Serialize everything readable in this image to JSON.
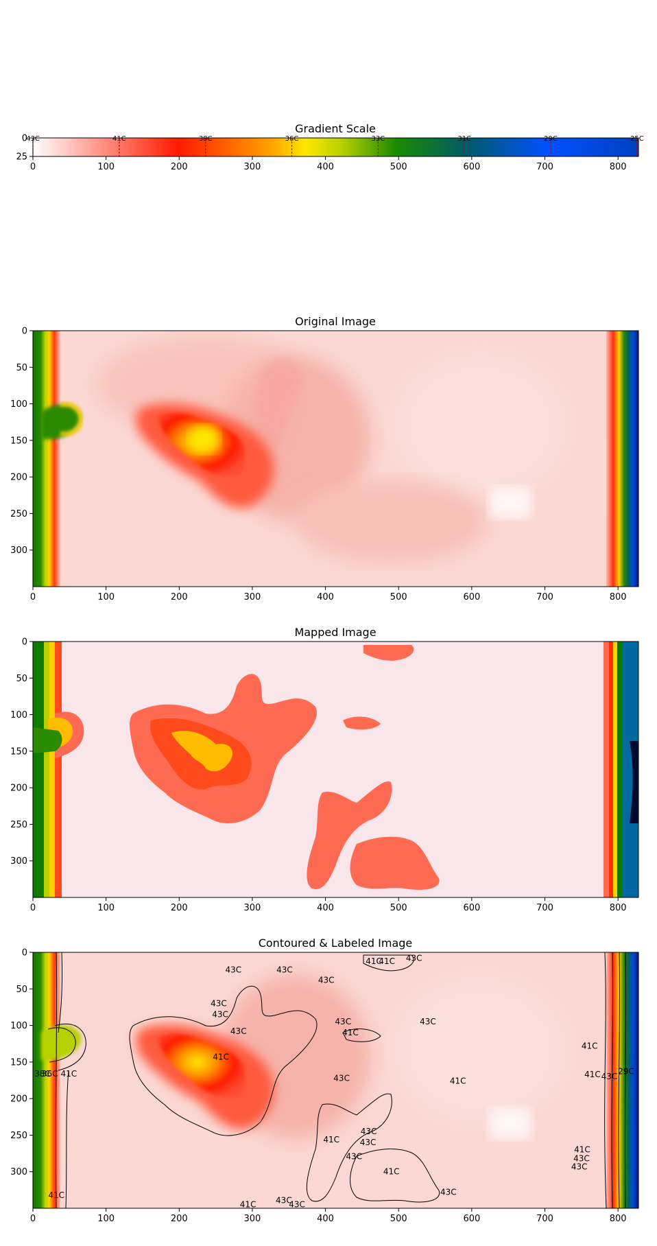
{
  "chart_data": [
    {
      "type": "heatmap",
      "title": "Gradient Scale",
      "xlim": [
        0,
        828
      ],
      "ylim": [
        25,
        0
      ],
      "x_ticks": [
        "0",
        "100",
        "200",
        "300",
        "400",
        "500",
        "600",
        "700",
        "800"
      ],
      "y_ticks": [
        "0",
        "25"
      ],
      "gradient_stops": [
        {
          "pos": 0,
          "color": "#ffffff"
        },
        {
          "pos": 0.24,
          "color": "#ff1a00"
        },
        {
          "pos": 0.39,
          "color": "#ffa000"
        },
        {
          "pos": 0.45,
          "color": "#ffe800"
        },
        {
          "pos": 0.51,
          "color": "#b8d000"
        },
        {
          "pos": 0.6,
          "color": "#1a8a00"
        },
        {
          "pos": 0.72,
          "color": "#005a6a"
        },
        {
          "pos": 0.85,
          "color": "#0050ff"
        },
        {
          "pos": 1,
          "color": "#0040c0"
        }
      ],
      "markers": [
        {
          "x": 0,
          "label": "43C"
        },
        {
          "x": 118,
          "label": "41C"
        },
        {
          "x": 236,
          "label": "38C"
        },
        {
          "x": 354,
          "label": "36C"
        },
        {
          "x": 472,
          "label": "33C"
        },
        {
          "x": 590,
          "label": "31C"
        },
        {
          "x": 708,
          "label": "29C"
        },
        {
          "x": 826,
          "label": "25C"
        }
      ]
    },
    {
      "type": "heatmap",
      "title": "Original Image",
      "xlim": [
        0,
        828
      ],
      "ylim": [
        350,
        0
      ],
      "x_ticks": [
        "0",
        "100",
        "200",
        "300",
        "400",
        "500",
        "600",
        "700",
        "800"
      ],
      "y_ticks": [
        "0",
        "50",
        "100",
        "150",
        "200",
        "250",
        "300"
      ]
    },
    {
      "type": "heatmap",
      "title": "Mapped Image",
      "xlim": [
        0,
        828
      ],
      "ylim": [
        350,
        0
      ],
      "x_ticks": [
        "0",
        "100",
        "200",
        "300",
        "400",
        "500",
        "600",
        "700",
        "800"
      ],
      "y_ticks": [
        "0",
        "50",
        "100",
        "150",
        "200",
        "250",
        "300"
      ]
    },
    {
      "type": "heatmap",
      "title": "Contoured & Labeled Image",
      "xlim": [
        0,
        828
      ],
      "ylim": [
        350,
        0
      ],
      "x_ticks": [
        "0",
        "100",
        "200",
        "300",
        "400",
        "500",
        "600",
        "700",
        "800"
      ],
      "y_ticks": [
        "0",
        "50",
        "100",
        "150",
        "200",
        "250",
        "300"
      ],
      "annotations": [
        {
          "x": 263,
          "y": 24,
          "text": "43C"
        },
        {
          "x": 333,
          "y": 24,
          "text": "43C"
        },
        {
          "x": 390,
          "y": 38,
          "text": "43C"
        },
        {
          "x": 455,
          "y": 12,
          "text": "41C"
        },
        {
          "x": 473,
          "y": 12,
          "text": "41C"
        },
        {
          "x": 510,
          "y": 8,
          "text": "43C"
        },
        {
          "x": 243,
          "y": 70,
          "text": "43C"
        },
        {
          "x": 245,
          "y": 85,
          "text": "43C"
        },
        {
          "x": 270,
          "y": 108,
          "text": "43C"
        },
        {
          "x": 413,
          "y": 95,
          "text": "43C"
        },
        {
          "x": 423,
          "y": 110,
          "text": "41C"
        },
        {
          "x": 529,
          "y": 95,
          "text": "43C"
        },
        {
          "x": 246,
          "y": 143,
          "text": "41C"
        },
        {
          "x": 411,
          "y": 172,
          "text": "43C"
        },
        {
          "x": 570,
          "y": 176,
          "text": "41C"
        },
        {
          "x": 750,
          "y": 128,
          "text": "41C"
        },
        {
          "x": 754,
          "y": 167,
          "text": "41C"
        },
        {
          "x": 777,
          "y": 170,
          "text": "43C"
        },
        {
          "x": 800,
          "y": 163,
          "text": "29C"
        },
        {
          "x": 2,
          "y": 166,
          "text": "38C"
        },
        {
          "x": 12,
          "y": 166,
          "text": "36C"
        },
        {
          "x": 38,
          "y": 166,
          "text": "41C"
        },
        {
          "x": 397,
          "y": 256,
          "text": "41C"
        },
        {
          "x": 448,
          "y": 245,
          "text": "43C"
        },
        {
          "x": 447,
          "y": 260,
          "text": "43C"
        },
        {
          "x": 428,
          "y": 279,
          "text": "43C"
        },
        {
          "x": 479,
          "y": 300,
          "text": "41C"
        },
        {
          "x": 740,
          "y": 270,
          "text": "41C"
        },
        {
          "x": 739,
          "y": 282,
          "text": "43C"
        },
        {
          "x": 736,
          "y": 293,
          "text": "43C"
        },
        {
          "x": 21,
          "y": 332,
          "text": "41C"
        },
        {
          "x": 283,
          "y": 345,
          "text": "41C"
        },
        {
          "x": 332,
          "y": 339,
          "text": "43C"
        },
        {
          "x": 350,
          "y": 345,
          "text": "43C"
        },
        {
          "x": 557,
          "y": 328,
          "text": "43C"
        }
      ]
    }
  ]
}
